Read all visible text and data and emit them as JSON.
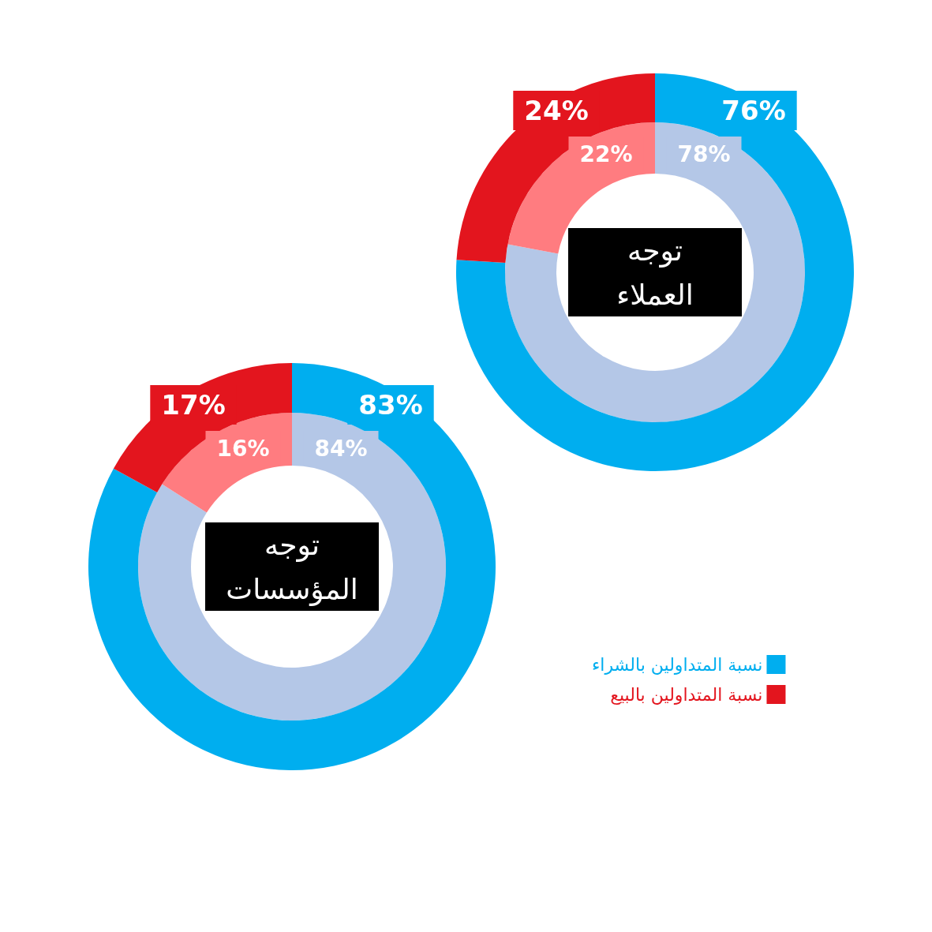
{
  "chart_data": [
    {
      "type": "donut",
      "title": "توجه العملاء",
      "categories": [
        null,
        null
      ],
      "legend": false,
      "series": [
        {
          "values": [
            78,
            22
          ],
          "colors": [
            "#b4c7e7",
            "#ff7c80"
          ],
          "value_labels": [
            "78%",
            "22%"
          ]
        },
        {
          "values": [
            76,
            24
          ],
          "colors": [
            "#00aeef",
            "#e3151e"
          ],
          "value_labels": [
            "76%",
            "24%"
          ]
        }
      ]
    },
    {
      "type": "donut",
      "title": "توجه المؤسسات",
      "categories": [
        "نسبة المتداولين بالشراء",
        "نسبة المتداولين بالبيع"
      ],
      "legend": "right",
      "series": [
        {
          "values": [
            84,
            16
          ],
          "colors": [
            "#b4c7e7",
            "#ff7c80"
          ],
          "value_labels": [
            "84%",
            "16%"
          ]
        },
        {
          "values": [
            83,
            17
          ],
          "colors": [
            "#00aeef",
            "#e3151e"
          ],
          "value_labels": [
            "83%",
            "17%"
          ]
        }
      ]
    }
  ]
}
